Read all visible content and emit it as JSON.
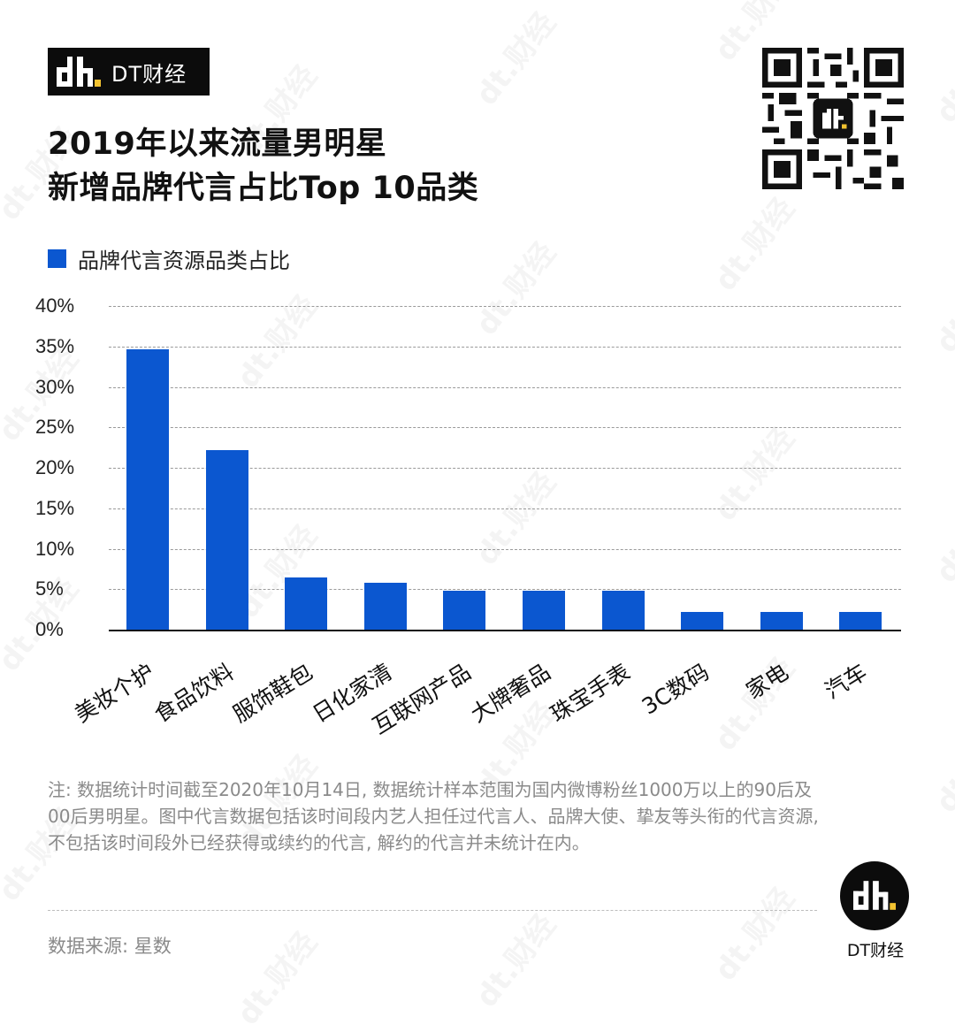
{
  "brand": {
    "name": "DT财经",
    "logo_icon": "dt-logo-icon",
    "accent_color": "#F2C230"
  },
  "title": {
    "line1": "2019年以来流量男明星",
    "line2": "新增品牌代言占比Top 10品类"
  },
  "qr": {
    "icon": "qr-code-icon"
  },
  "legend": {
    "label": "品牌代言资源品类占比",
    "color": "#0B57D0"
  },
  "y_ticks": [
    "40%",
    "35%",
    "30%",
    "25%",
    "20%",
    "15%",
    "10%",
    "5%",
    "0%"
  ],
  "x_labels": [
    "美妆个护",
    "食品饮料",
    "服饰鞋包",
    "日化家清",
    "互联网产品",
    "大牌奢品",
    "珠宝手表",
    "3C数码",
    "家电",
    "汽车"
  ],
  "note": "注: 数据统计时间截至2020年10月14日, 数据统计样本范围为国内微博粉丝1000万以上的90后及00后男明星。图中代言数据包括该时间段内艺人担任过代言人、品牌大使、挚友等头衔的代言资源, 不包括该时间段外已经获得或续约的代言, 解约的代言并未统计在内。",
  "source": "数据来源: 星数",
  "footer": {
    "name": "DT财经"
  },
  "watermark": "dt.财经",
  "chart_data": {
    "type": "bar",
    "title": "2019年以来流量男明星新增品牌代言占比Top 10品类",
    "categories": [
      "美妆个护",
      "食品饮料",
      "服饰鞋包",
      "日化家清",
      "互联网产品",
      "大牌奢品",
      "珠宝手表",
      "3C数码",
      "家电",
      "汽车"
    ],
    "series": [
      {
        "name": "品牌代言资源品类占比",
        "color": "#0B57D0",
        "values": [
          34.6,
          22.2,
          6.4,
          5.8,
          4.8,
          4.8,
          4.8,
          2.2,
          2.2,
          2.2
        ]
      }
    ],
    "xlabel": "",
    "ylabel": "",
    "ylim": [
      0,
      40
    ],
    "ytick_step": 5,
    "y_format": "percent",
    "grid": "horizontal dashed",
    "legend_position": "top-left"
  }
}
